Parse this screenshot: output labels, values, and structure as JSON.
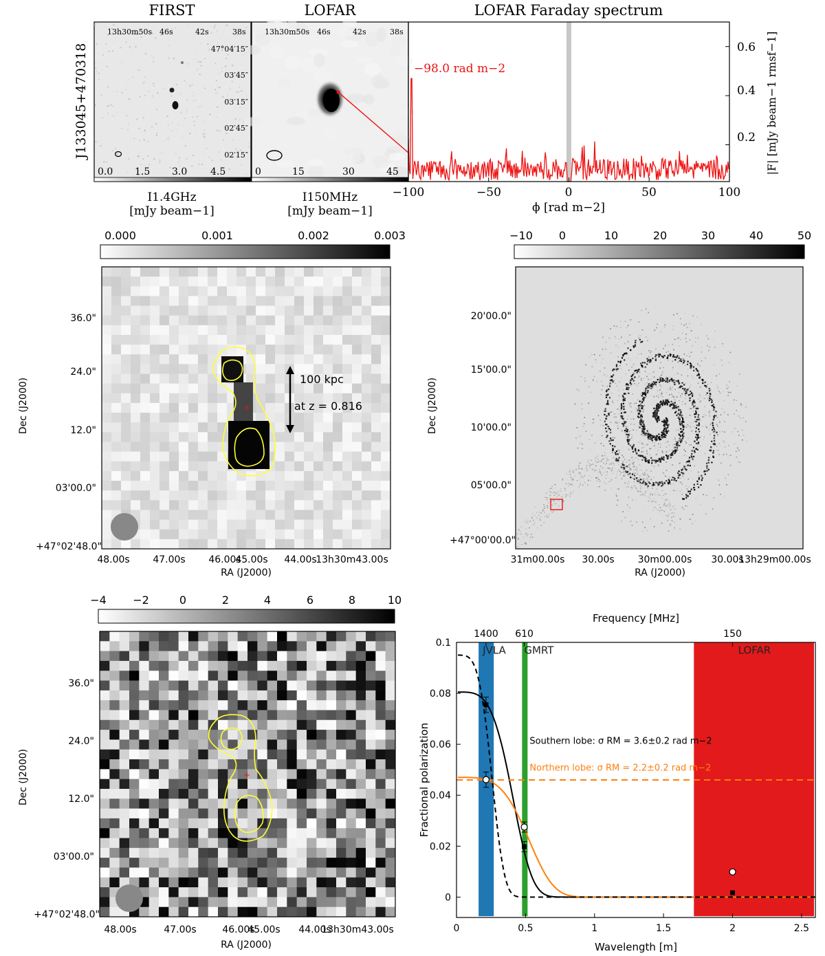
{
  "colors": {
    "red": "#ee1111",
    "yellow": "#ffff33",
    "orange": "#ff7f0e",
    "blue": "#1f77b4",
    "green": "#2ca02c",
    "lofar_band": "#e31a1c",
    "grey_band": "#c8c8c8"
  },
  "top_row": {
    "side_label": "J133045+470318",
    "first_panel": {
      "title": "FIRST",
      "ra_ticks": [
        "13h30m50s",
        "46s",
        "42s",
        "38s"
      ],
      "dec_ticks": [
        "47°04′15″",
        "03′45″",
        "03′15″",
        "02′45″",
        "02′15″"
      ],
      "colorbar_ticks": [
        "0.0",
        "1.5",
        "3.0",
        "4.5"
      ],
      "colorbar_label_line1": "I1.4GHz",
      "colorbar_label_line2": "[mJy beam−1]"
    },
    "lofar_panel": {
      "title": "LOFAR",
      "ra_ticks": [
        "13h30m50s",
        "46s",
        "42s",
        "38s"
      ],
      "colorbar_ticks": [
        "0",
        "15",
        "30",
        "45"
      ],
      "colorbar_label_line1": "I150MHz",
      "colorbar_label_line2": "[mJy beam−1]"
    },
    "faraday_panel": {
      "title": "LOFAR Faraday spectrum",
      "peak_annotation": "−98.0 rad m−2",
      "xlabel": "ϕ [rad m−2]",
      "ylabel": "|F| [mJy beam−1 rmsf−1]",
      "x_ticks": [
        "−100",
        "−50",
        "0",
        "50",
        "100"
      ],
      "y_ticks": [
        "0.2",
        "0.4",
        "0.6"
      ]
    }
  },
  "mid_left": {
    "colorbar_ticks": [
      "0.000",
      "0.001",
      "0.002",
      "0.003"
    ],
    "dec_ticks": [
      "36.0\"",
      "24.0\"",
      "12.0\"",
      "03'00.0\"",
      "+47°02'48.0\""
    ],
    "ra_ticks": [
      "48.00s",
      "47.00s",
      "46.00s",
      "45.00s",
      "44.00s",
      "13h30m43.00s"
    ],
    "xlabel": "RA (J2000)",
    "ylabel": "Dec (J2000)",
    "scale_text": "100 kpc",
    "redshift_text": "at z = 0.816"
  },
  "mid_right": {
    "colorbar_ticks": [
      "−10",
      "0",
      "10",
      "20",
      "30",
      "40",
      "50"
    ],
    "dec_ticks": [
      "20'00.0\"",
      "15'00.0\"",
      "10'00.0\"",
      "05'00.0\"",
      "+47°00'00.0\""
    ],
    "ra_ticks": [
      "31m00.00s",
      "30.00s",
      "30m00.00s",
      "30.00s",
      "13h29m00.00s"
    ],
    "xlabel": "RA (J2000)",
    "ylabel": "Dec (J2000)"
  },
  "bot_left": {
    "colorbar_ticks": [
      "−4",
      "−2",
      "0",
      "2",
      "4",
      "6",
      "8",
      "10"
    ],
    "dec_ticks": [
      "36.0\"",
      "24.0\"",
      "12.0\"",
      "03'00.0\"",
      "+47°02'48.0\""
    ],
    "ra_ticks": [
      "48.00s",
      "47.00s",
      "46.00s",
      "45.00s",
      "44.00s",
      "13h30m43.00s"
    ],
    "xlabel": "RA (J2000)",
    "ylabel": "Dec (J2000)"
  },
  "chart_data": [
    {
      "type": "line",
      "title": "LOFAR Faraday spectrum",
      "xlabel": "ϕ [rad m−2]",
      "ylabel": "|F| [mJy beam−1 rmsf−1]",
      "xlim": [
        -100,
        100
      ],
      "ylim": [
        0.05,
        0.7
      ],
      "peak": {
        "x": -98.0,
        "y": 0.47
      },
      "excluded_band": {
        "x": 0,
        "width": 3
      },
      "noise_level": 0.1
    },
    {
      "type": "scatter",
      "xlabel": "Wavelength [m]",
      "ylabel": "Fractional polarization",
      "top_xlabel": "Frequency [MHz]",
      "xlim": [
        0,
        2.6
      ],
      "ylim": [
        -0.008,
        0.1
      ],
      "x_ticks": [
        "0",
        "0.5",
        "1",
        "1.5",
        "2",
        "2.5"
      ],
      "y_ticks": [
        "0",
        "0.02",
        "0.04",
        "0.06",
        "0.08",
        "0.1"
      ],
      "top_ticks": [
        {
          "label": "1400",
          "x": 0.214
        },
        {
          "label": "610",
          "x": 0.491
        },
        {
          "label": "150",
          "x": 2.0
        }
      ],
      "bands": [
        {
          "name": "JVLA",
          "x0": 0.16,
          "x1": 0.27
        },
        {
          "name": "GMRT",
          "x0": 0.475,
          "x1": 0.515
        },
        {
          "name": "LOFAR",
          "x0": 1.72,
          "x1": 2.6
        }
      ],
      "southern_lobe": {
        "label": "Southern lobe: σ RM = 3.6±0.2 rad m−2",
        "p0": 0.0805,
        "sigma_rm": 3.6,
        "points": [
          {
            "x": 0.214,
            "y": 0.0755,
            "err": 0.003
          },
          {
            "x": 0.491,
            "y": 0.0198,
            "err": 0.002
          },
          {
            "x": 2.0,
            "y": 0.0017,
            "err": 0
          }
        ]
      },
      "northern_lobe": {
        "label": "Northern lobe: σ RM = 2.2±0.2 rad m−2",
        "p0": 0.047,
        "sigma_rm": 2.2,
        "points": [
          {
            "x": 0.214,
            "y": 0.0461,
            "err": 0.003
          },
          {
            "x": 0.491,
            "y": 0.0275,
            "err": 0.002
          },
          {
            "x": 2.0,
            "y": 0.0099,
            "err": 0
          }
        ]
      },
      "dashed_black": {
        "p0": 0.095,
        "sigma_rm": 9.0
      },
      "dashed_orange": {
        "y": 0.046
      }
    }
  ]
}
